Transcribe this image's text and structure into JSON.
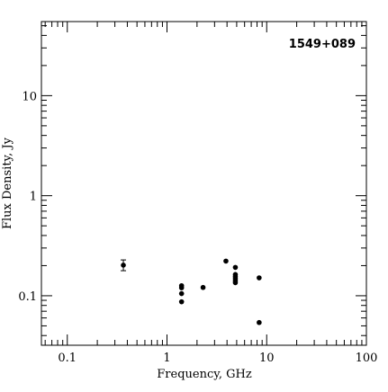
{
  "chart_data": {
    "type": "scatter",
    "title": "1549+089",
    "xlabel": "Frequency, GHz",
    "ylabel": "Flux Density, Jy",
    "xscale": "log",
    "yscale": "log",
    "xlim": [
      0.055,
      100
    ],
    "ylim": [
      0.032,
      55
    ],
    "grid": false,
    "x_tick_labels": [
      "0.1",
      "1",
      "10",
      "100"
    ],
    "x_tick_values": [
      0.1,
      1,
      10,
      100
    ],
    "y_tick_labels": [
      "0.1",
      "1",
      "10"
    ],
    "y_tick_values": [
      0.1,
      1,
      10
    ],
    "points": [
      {
        "x": 0.365,
        "y": 0.202,
        "yerr": [
          0.178,
          0.228
        ]
      },
      {
        "x": 1.4,
        "y": 0.126
      },
      {
        "x": 1.4,
        "y": 0.12
      },
      {
        "x": 1.4,
        "y": 0.105
      },
      {
        "x": 1.4,
        "y": 0.087
      },
      {
        "x": 2.3,
        "y": 0.121
      },
      {
        "x": 3.9,
        "y": 0.222
      },
      {
        "x": 4.85,
        "y": 0.192
      },
      {
        "x": 4.85,
        "y": 0.163
      },
      {
        "x": 4.85,
        "y": 0.155
      },
      {
        "x": 4.85,
        "y": 0.148
      },
      {
        "x": 4.85,
        "y": 0.141
      },
      {
        "x": 4.85,
        "y": 0.135
      },
      {
        "x": 8.4,
        "y": 0.151
      },
      {
        "x": 8.4,
        "y": 0.054
      }
    ]
  }
}
